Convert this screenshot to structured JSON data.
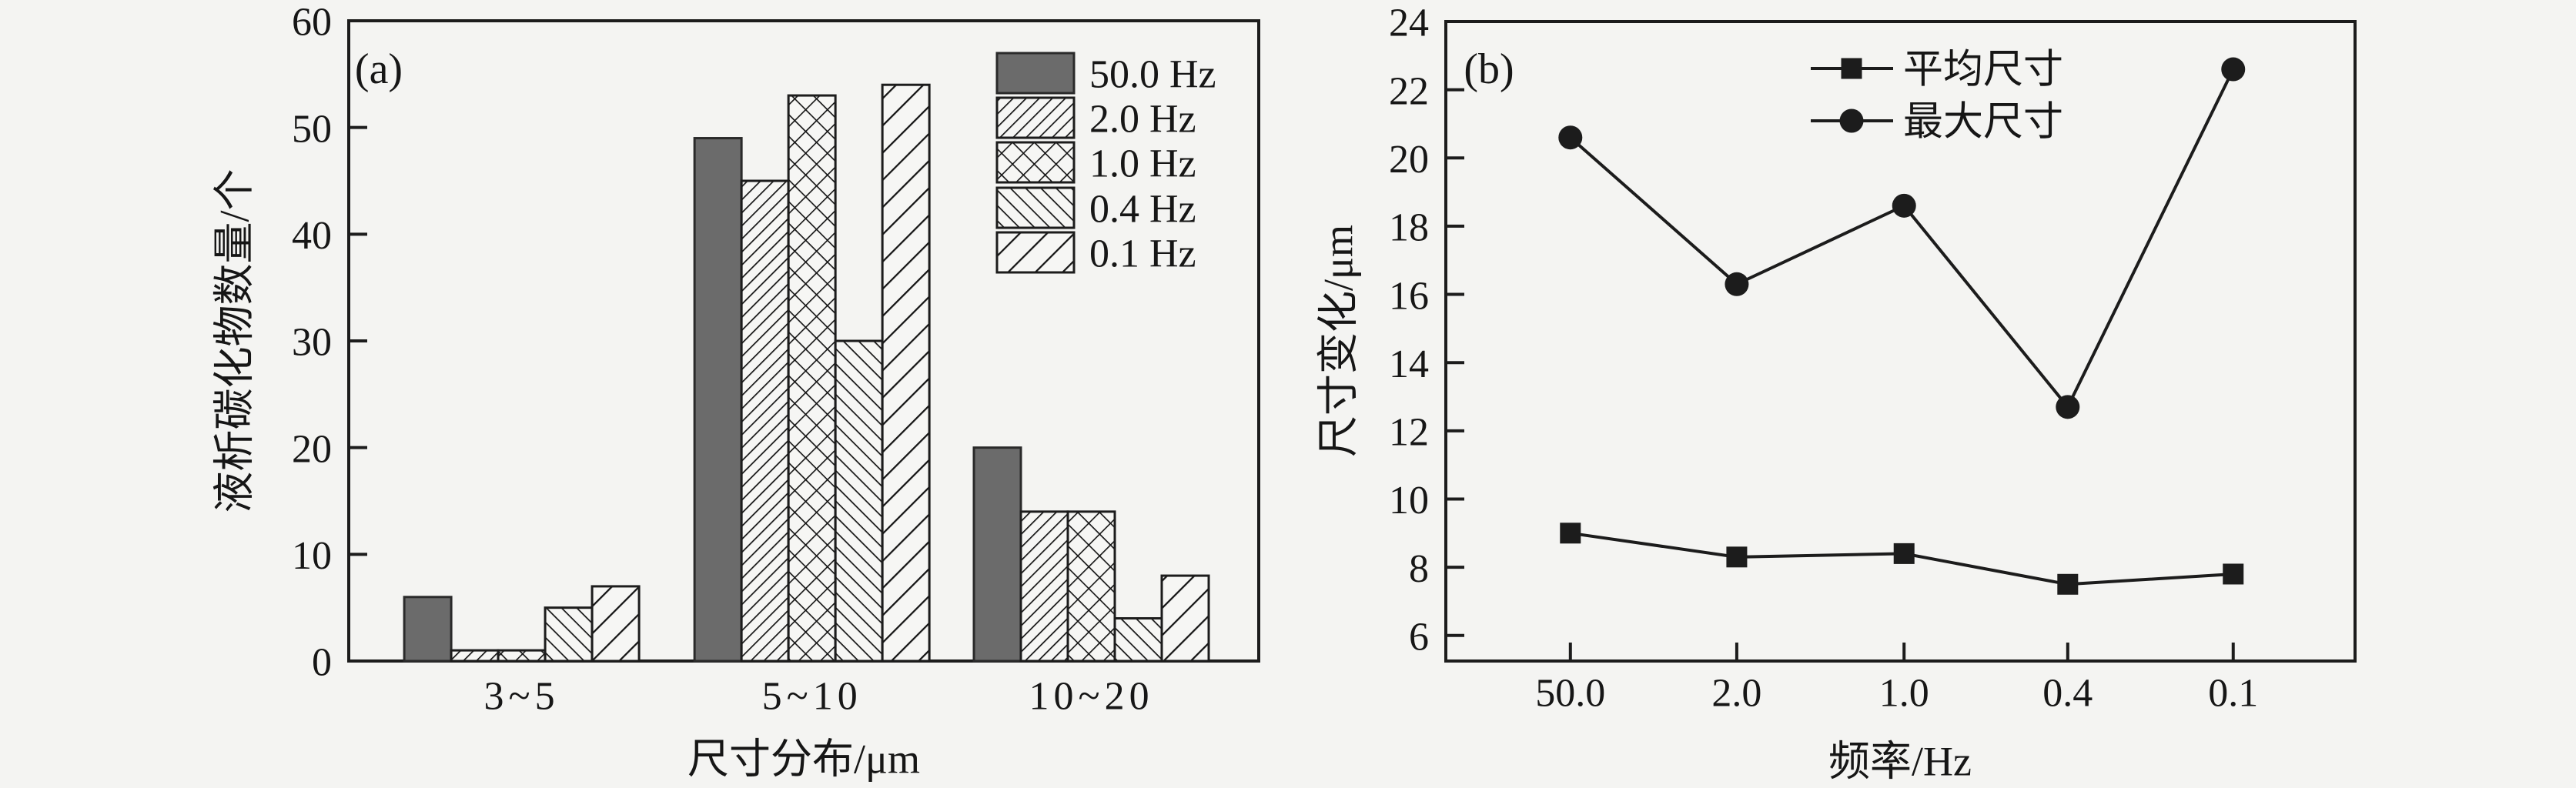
{
  "figure": {
    "bg": "#f4f4f2",
    "ink": "#1c1c1c",
    "text_color": "#161616",
    "bar_gray": "#6b6b6b",
    "hatch_bg": "#f6f6f4",
    "panel_a_tag": "(a)",
    "panel_b_tag": "(b)"
  },
  "chart_data": [
    {
      "type": "bar",
      "panel": "a",
      "tag": "(a)",
      "categories": [
        "3~5",
        "5~10",
        "10~20"
      ],
      "series": [
        {
          "name": "50.0 Hz",
          "values": [
            6,
            49,
            20
          ],
          "style": "solid-gray"
        },
        {
          "name": "2.0 Hz",
          "values": [
            1,
            45,
            14
          ],
          "style": "hatch-forward-fine"
        },
        {
          "name": "1.0 Hz",
          "values": [
            1,
            53,
            14
          ],
          "style": "hatch-cross"
        },
        {
          "name": "0.4 Hz",
          "values": [
            5,
            30,
            4
          ],
          "style": "hatch-backward"
        },
        {
          "name": "0.1 Hz",
          "values": [
            7,
            54,
            8
          ],
          "style": "hatch-forward-coarse"
        }
      ],
      "xlabel": "尺寸分布/μm",
      "ylabel": "液析碳化物数量/个",
      "ylim": [
        0,
        60
      ],
      "yticks": [
        0,
        10,
        20,
        30,
        40,
        50,
        60
      ],
      "legend_position": "upper right inside",
      "grid": false
    },
    {
      "type": "line",
      "panel": "b",
      "tag": "(b)",
      "categories": [
        "50.0",
        "2.0",
        "1.0",
        "0.4",
        "0.1"
      ],
      "series": [
        {
          "name": "平均尺寸",
          "marker": "square",
          "values": [
            9.0,
            8.3,
            8.4,
            7.5,
            7.8
          ]
        },
        {
          "name": "最大尺寸",
          "marker": "circle",
          "values": [
            20.6,
            16.3,
            18.6,
            12.7,
            22.6
          ]
        }
      ],
      "xlabel": "频率/Hz",
      "ylabel": "尺寸变化/μm",
      "ylim": [
        5.25,
        24
      ],
      "yticks": [
        6,
        8,
        10,
        12,
        14,
        16,
        18,
        20,
        22,
        24
      ],
      "legend_position": "upper center inside",
      "grid": false
    }
  ]
}
